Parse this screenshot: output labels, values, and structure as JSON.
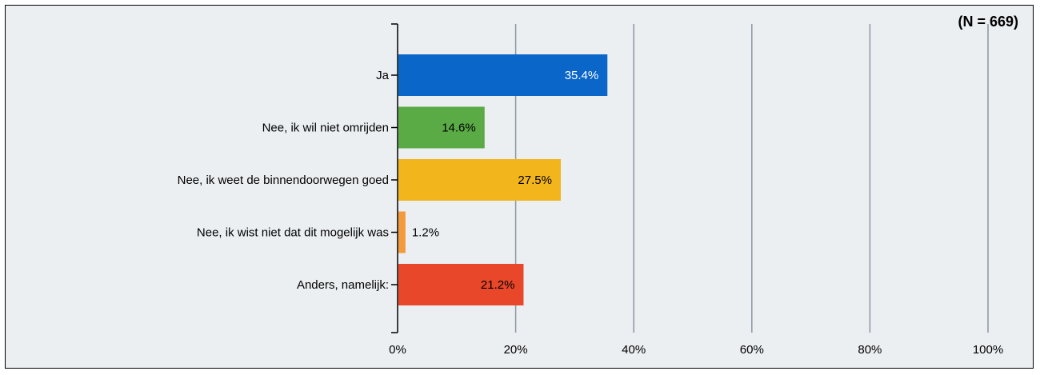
{
  "sample_size_label": "(N = 669)",
  "chart_data": {
    "type": "bar",
    "orientation": "horizontal",
    "title": "",
    "xlabel": "",
    "ylabel": "",
    "xlim": [
      0,
      100
    ],
    "grid": true,
    "categories": [
      "Ja",
      "Nee, ik wil niet omrijden",
      "Nee, ik weet de binnendoorwegen goed",
      "Nee, ik wist niet dat dit mogelijk was",
      "Anders, namelijk:"
    ],
    "values": [
      35.4,
      14.6,
      27.5,
      1.2,
      21.2
    ],
    "value_labels": [
      "35.4%",
      "14.6%",
      "27.5%",
      "1.2%",
      "21.2%"
    ],
    "colors": [
      "#0a66c9",
      "#5aab45",
      "#f2b51c",
      "#f39a3c",
      "#e8472a"
    ],
    "x_ticks": [
      0,
      20,
      40,
      60,
      80,
      100
    ],
    "x_tick_labels": [
      "0%",
      "20%",
      "40%",
      "60%",
      "80%",
      "100%"
    ]
  }
}
